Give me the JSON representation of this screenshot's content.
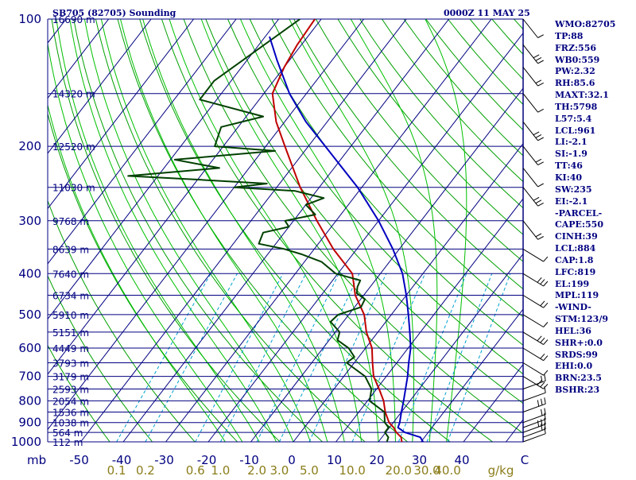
{
  "header": {
    "station": "SB705 (82705) Sounding",
    "time": "0000Z 11 MAY 25"
  },
  "chart_data": {
    "type": "line",
    "diagram": "skew-t log-p",
    "pressure_levels": [
      100,
      200,
      300,
      400,
      500,
      600,
      700,
      800,
      900,
      1000
    ],
    "pressure_unit_label": "mb",
    "temperature_ticks": [
      -50,
      -40,
      -30,
      -20,
      -10,
      0,
      10,
      20,
      30,
      40
    ],
    "mixing_ratio_ticks": [
      "0.1",
      "0.2",
      "0.6",
      "1.0",
      "2.0",
      "3.0",
      "5.0",
      "10.0",
      "20.0",
      "30.0",
      "40.0"
    ],
    "mixing_ratio_values": [
      0.1,
      0.2,
      0.6,
      1.0,
      2.0,
      3.0,
      5.0,
      10.0,
      20.0,
      30.0,
      40.0
    ],
    "mixing_ratio_unit": "g/kg",
    "trailing_tick": "C",
    "height_labels": [
      {
        "p": 100,
        "label": "16690 m"
      },
      {
        "p": 150,
        "label": "14320 m"
      },
      {
        "p": 200,
        "label": "12520 m"
      },
      {
        "p": 250,
        "label": "11030 m"
      },
      {
        "p": 300,
        "label": "9768 m"
      },
      {
        "p": 350,
        "label": "8639 m"
      },
      {
        "p": 400,
        "label": "7640 m"
      },
      {
        "p": 450,
        "label": "6734 m"
      },
      {
        "p": 500,
        "label": "5910 m"
      },
      {
        "p": 550,
        "label": "5151 m"
      },
      {
        "p": 600,
        "label": "4449 m"
      },
      {
        "p": 650,
        "label": "3793 m"
      },
      {
        "p": 700,
        "label": "3179 m"
      },
      {
        "p": 750,
        "label": "2593 m"
      },
      {
        "p": 800,
        "label": "2054 m"
      },
      {
        "p": 850,
        "label": "1536 m"
      },
      {
        "p": 900,
        "label": "1038 m"
      },
      {
        "p": 950,
        "label": "564 m"
      },
      {
        "p": 1000,
        "label": "112 m"
      }
    ],
    "series": [
      {
        "role": "temperature",
        "color": "#c00000",
        "points": [
          [
            1000,
            25.5
          ],
          [
            975,
            24.5
          ],
          [
            950,
            22.5
          ],
          [
            925,
            21.0
          ],
          [
            900,
            19.0
          ],
          [
            850,
            16.2
          ],
          [
            800,
            13.8
          ],
          [
            750,
            10.6
          ],
          [
            700,
            7.0
          ],
          [
            650,
            4.3
          ],
          [
            600,
            1.5
          ],
          [
            550,
            -2.7
          ],
          [
            500,
            -6.4
          ],
          [
            450,
            -12.0
          ],
          [
            400,
            -16.6
          ],
          [
            350,
            -25.5
          ],
          [
            300,
            -34.5
          ],
          [
            250,
            -44.5
          ],
          [
            200,
            -55.5
          ],
          [
            175,
            -62.0
          ],
          [
            150,
            -68.0
          ],
          [
            130,
            -70.0
          ],
          [
            115,
            -71.0
          ],
          [
            100,
            -71.5
          ]
        ]
      },
      {
        "role": "dewpoint",
        "color": "#004000",
        "points": [
          [
            1000,
            22.0
          ],
          [
            975,
            21.5
          ],
          [
            950,
            19.8
          ],
          [
            925,
            19.8
          ],
          [
            900,
            18.0
          ],
          [
            850,
            16.0
          ],
          [
            800,
            10.5
          ],
          [
            750,
            8.8
          ],
          [
            700,
            5.0
          ],
          [
            650,
            -1.8
          ],
          [
            630,
            -1.0
          ],
          [
            600,
            -4.0
          ],
          [
            575,
            -8.0
          ],
          [
            550,
            -9.0
          ],
          [
            520,
            -13.0
          ],
          [
            500,
            -12.5
          ],
          [
            480,
            -8.5
          ],
          [
            460,
            -9.0
          ],
          [
            445,
            -12.0
          ],
          [
            430,
            -13.0
          ],
          [
            415,
            -13.5
          ],
          [
            400,
            -20.5
          ],
          [
            375,
            -26.0
          ],
          [
            360,
            -32.0
          ],
          [
            350,
            -37.0
          ],
          [
            340,
            -44.0
          ],
          [
            320,
            -45.0
          ],
          [
            310,
            -40.0
          ],
          [
            300,
            -42.0
          ],
          [
            290,
            -36.0
          ],
          [
            275,
            -40.0
          ],
          [
            265,
            -37.0
          ],
          [
            255,
            -45.0
          ],
          [
            250,
            -60.0
          ],
          [
            245,
            -53.0
          ],
          [
            240,
            -69.0
          ],
          [
            235,
            -87.0
          ],
          [
            225,
            -67.0
          ],
          [
            215,
            -79.0
          ],
          [
            205,
            -57.0
          ],
          [
            200,
            -72.0
          ],
          [
            180,
            -74.0
          ],
          [
            170,
            -66.0
          ],
          [
            155,
            -84.0
          ],
          [
            140,
            -84.0
          ],
          [
            100,
            -75.0
          ]
        ]
      },
      {
        "role": "parcel",
        "color": "#0000c0",
        "points": [
          [
            1000,
            30.5
          ],
          [
            975,
            29.0
          ],
          [
            950,
            24.5
          ],
          [
            925,
            22.0
          ],
          [
            900,
            21.5
          ],
          [
            850,
            20.0
          ],
          [
            800,
            18.5
          ],
          [
            750,
            16.8
          ],
          [
            700,
            15.0
          ],
          [
            650,
            12.8
          ],
          [
            600,
            10.6
          ],
          [
            550,
            7.5
          ],
          [
            500,
            4.0
          ],
          [
            450,
            0.0
          ],
          [
            400,
            -4.8
          ],
          [
            350,
            -11.5
          ],
          [
            300,
            -20.0
          ],
          [
            250,
            -31.0
          ],
          [
            200,
            -46.0
          ],
          [
            175,
            -55.0
          ],
          [
            150,
            -64.0
          ],
          [
            125,
            -73.0
          ],
          [
            110,
            -79.0
          ]
        ]
      }
    ],
    "wind_profile_shown": true
  },
  "indices": [
    "WMO:82705",
    "TP:88",
    "FRZ:556",
    "WB0:559",
    "PW:2.32",
    "RH:85.6",
    "MAXT:32.1",
    "TH:5798",
    "L57:5.4",
    "LCL:961",
    "LI:-2.1",
    "SI:-1.9",
    "TT:46",
    "KI:40",
    "SW:235",
    "EI:-2.1",
    "-PARCEL-",
    "CAPE:550",
    "CINH:39",
    "LCL:884",
    "CAP:1.8",
    "LFC:819",
    "EL:199",
    "MPL:119",
    "-WIND-",
    "STM:123/9",
    "HEL:36",
    "SHR+:0.0",
    "SRDS:99",
    "EHI:0.0",
    "BRN:23.5",
    "BSHR:23"
  ],
  "colors": {
    "isobar": "#000080",
    "isotherm": "#000080",
    "dry_adiabat": "#00a000",
    "moist_adiabat": "#00c000",
    "mixing_ratio": "#00a0d0",
    "label": "#000080",
    "mixing_label": "#8b7d1a"
  }
}
